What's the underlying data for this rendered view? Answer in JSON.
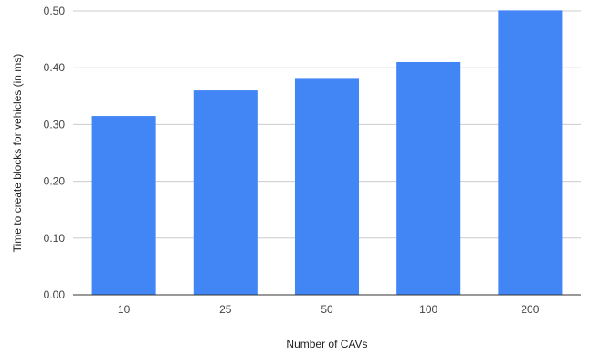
{
  "chart_data": {
    "type": "bar",
    "title": "",
    "xlabel": "Number of CAVs",
    "ylabel": "Time to create blocks for vehicles (in ms)",
    "categories": [
      "10",
      "25",
      "50",
      "100",
      "200"
    ],
    "values": [
      0.315,
      0.36,
      0.382,
      0.41,
      0.501
    ],
    "ylim": [
      0,
      0.5
    ],
    "yticks": [
      0.0,
      0.1,
      0.2,
      0.3,
      0.4,
      0.5
    ],
    "ytick_labels": [
      "0.00",
      "0.10",
      "0.20",
      "0.30",
      "0.40",
      "0.50"
    ],
    "bar_color": "#4285f4",
    "grid": true,
    "legend": "none"
  }
}
